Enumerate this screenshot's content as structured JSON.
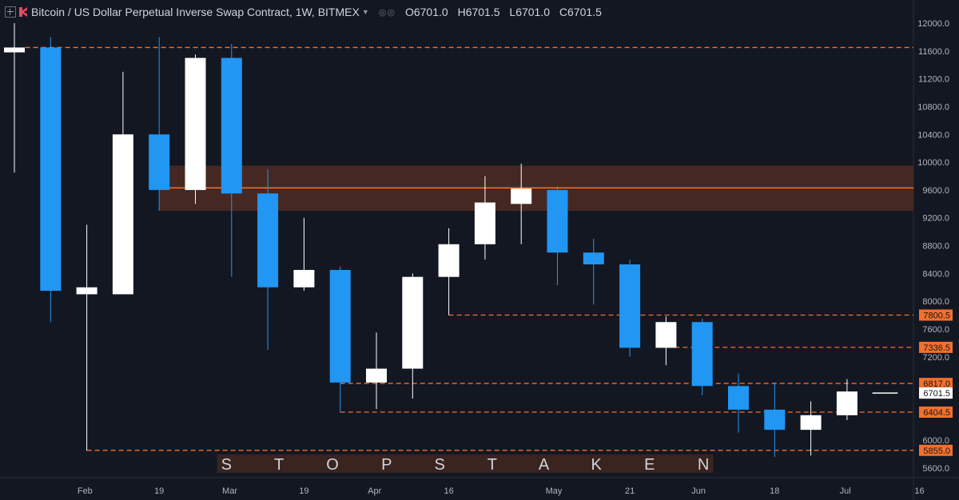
{
  "header": {
    "symbol_title": "Bitcoin / US Dollar Perpetual Inverse Swap Contract, 1W, BITMEX",
    "ohlc": [
      {
        "key": "O",
        "value": "6701.0"
      },
      {
        "key": "H",
        "value": "6701.5"
      },
      {
        "key": "L",
        "value": "6701.0"
      },
      {
        "key": "C",
        "value": "6701.5"
      }
    ]
  },
  "colors": {
    "background": "#131722",
    "up_candle": "#ffffff",
    "down_candle": "#2196f3",
    "level_line": "#f5702a",
    "zone_fill": "#4b2a22",
    "axis_text": "#b2b5be"
  },
  "chart_data": {
    "type": "candlestick",
    "timeframe": "1W",
    "ylim": [
      5450,
      12250
    ],
    "y_ticks": [
      "12000.0",
      "11600.0",
      "11200.0",
      "10800.0",
      "10400.0",
      "10000.0",
      "9600.0",
      "9200.0",
      "8800.0",
      "8400.0",
      "8000.0",
      "7600.0",
      "7200.0",
      "6800.0",
      "6400.0",
      "6000.0",
      "5600.0"
    ],
    "x_labels": [
      {
        "label": "Feb",
        "index": 1.95
      },
      {
        "label": "19",
        "index": 4
      },
      {
        "label": "Mar",
        "index": 5.95
      },
      {
        "label": "19",
        "index": 8
      },
      {
        "label": "Apr",
        "index": 9.95
      },
      {
        "label": "16",
        "index": 12
      },
      {
        "label": "May",
        "index": 14.9
      },
      {
        "label": "21",
        "index": 17
      },
      {
        "label": "Jun",
        "index": 18.9
      },
      {
        "label": "18",
        "index": 21
      },
      {
        "label": "Jul",
        "index": 22.95
      },
      {
        "label": "16",
        "index": 25
      }
    ],
    "candles": [
      {
        "o": 11580,
        "h": 12000,
        "l": 9850,
        "c": 11650
      },
      {
        "o": 11650,
        "h": 11800,
        "l": 7700,
        "c": 8150
      },
      {
        "o": 8100,
        "h": 9100,
        "l": 5850,
        "c": 8200
      },
      {
        "o": 8100,
        "h": 11300,
        "l": 8100,
        "c": 10400
      },
      {
        "o": 10400,
        "h": 11800,
        "l": 9300,
        "c": 9600
      },
      {
        "o": 9600,
        "h": 11550,
        "l": 9400,
        "c": 11500
      },
      {
        "o": 11500,
        "h": 11700,
        "l": 8350,
        "c": 9550
      },
      {
        "o": 9550,
        "h": 9900,
        "l": 7300,
        "c": 8200
      },
      {
        "o": 8200,
        "h": 9200,
        "l": 8150,
        "c": 8450
      },
      {
        "o": 8450,
        "h": 8500,
        "l": 6400,
        "c": 6830
      },
      {
        "o": 6830,
        "h": 7550,
        "l": 6450,
        "c": 7030
      },
      {
        "o": 7030,
        "h": 8400,
        "l": 6600,
        "c": 8350
      },
      {
        "o": 8350,
        "h": 9050,
        "l": 7800,
        "c": 8820
      },
      {
        "o": 8820,
        "h": 9800,
        "l": 8600,
        "c": 9420
      },
      {
        "o": 9400,
        "h": 9980,
        "l": 8820,
        "c": 9620
      },
      {
        "o": 9600,
        "h": 9650,
        "l": 8230,
        "c": 8700
      },
      {
        "o": 8700,
        "h": 8900,
        "l": 7950,
        "c": 8530
      },
      {
        "o": 8530,
        "h": 8600,
        "l": 7200,
        "c": 7330
      },
      {
        "o": 7330,
        "h": 7780,
        "l": 7080,
        "c": 7700
      },
      {
        "o": 7700,
        "h": 7750,
        "l": 6650,
        "c": 6780
      },
      {
        "o": 6780,
        "h": 6960,
        "l": 6110,
        "c": 6440
      },
      {
        "o": 6440,
        "h": 6830,
        "l": 5760,
        "c": 6150
      },
      {
        "o": 6150,
        "h": 6560,
        "l": 5780,
        "c": 6360
      },
      {
        "o": 6360,
        "h": 6880,
        "l": 6290,
        "c": 6701.5
      }
    ],
    "current_price": {
      "value": 6701.5,
      "label": "6701.5"
    },
    "zone": {
      "top": 9950,
      "bottom": 9300,
      "midline": 9630,
      "from_index": 4
    },
    "levels": [
      {
        "value": 11650,
        "from_index": 0.3,
        "label": ""
      },
      {
        "value": 7800.5,
        "from_index": 12,
        "label": "7800.5"
      },
      {
        "value": 7336.5,
        "from_index": 17.8,
        "label": "7336.5"
      },
      {
        "value": 6817.0,
        "from_index": 9,
        "label": "6817.0"
      },
      {
        "value": 6404.5,
        "from_index": 9,
        "label": "6404.5"
      },
      {
        "value": 5855.0,
        "from_index": 2,
        "label": "5855.0"
      }
    ],
    "annotation": {
      "text": "S  T  O  P  S     T  A  K  E  N",
      "from_index": 5.6,
      "to_index": 19.3
    }
  }
}
